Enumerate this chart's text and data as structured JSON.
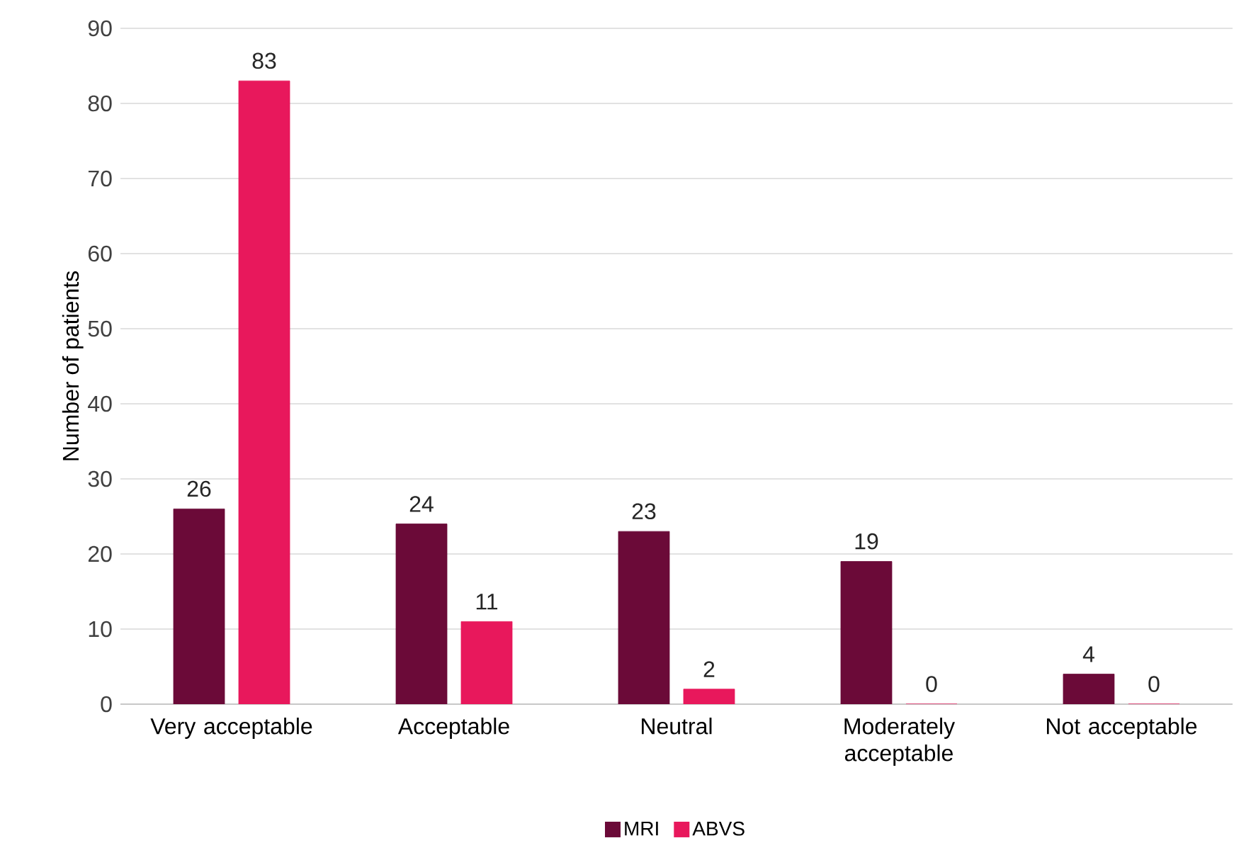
{
  "chart_data": {
    "type": "bar",
    "ylabel": "Number of patients",
    "categories": [
      "Very acceptable",
      "Acceptable",
      "Neutral",
      "Moderately acceptable",
      "Not acceptable"
    ],
    "series": [
      {
        "name": "MRI",
        "color": "#6b0a38",
        "values": [
          26,
          24,
          23,
          19,
          4
        ]
      },
      {
        "name": "ABVS",
        "color": "#e8185c",
        "values": [
          83,
          11,
          2,
          0,
          0
        ]
      }
    ],
    "ylim": [
      0,
      90
    ],
    "yticks": [
      0,
      10,
      20,
      30,
      40,
      50,
      60,
      70,
      80,
      90
    ],
    "grid": "y",
    "legend": "bottom",
    "data_labels": true
  }
}
